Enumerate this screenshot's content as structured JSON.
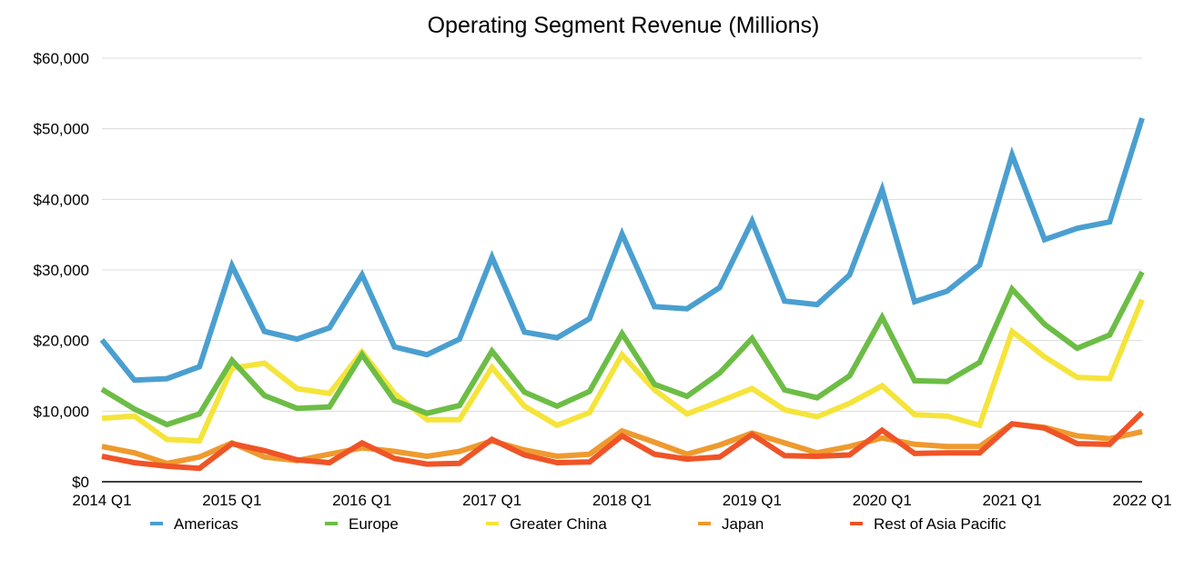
{
  "chart_data": {
    "type": "line",
    "title": "Operating Segment Revenue (Millions)",
    "xlabel": "",
    "ylabel": "",
    "ylim": [
      0,
      60000
    ],
    "yticks": [
      0,
      10000,
      20000,
      30000,
      40000,
      50000,
      60000
    ],
    "ytick_labels": [
      "$0",
      "$10,000",
      "$20,000",
      "$30,000",
      "$40,000",
      "$50,000",
      "$60,000"
    ],
    "x": [
      "2014 Q1",
      "2014 Q2",
      "2014 Q3",
      "2014 Q4",
      "2015 Q1",
      "2015 Q2",
      "2015 Q3",
      "2015 Q4",
      "2016 Q1",
      "2016 Q2",
      "2016 Q3",
      "2016 Q4",
      "2017 Q1",
      "2017 Q2",
      "2017 Q3",
      "2017 Q4",
      "2018 Q1",
      "2018 Q2",
      "2018 Q3",
      "2018 Q4",
      "2019 Q1",
      "2019 Q2",
      "2019 Q3",
      "2019 Q4",
      "2020 Q1",
      "2020 Q2",
      "2020 Q3",
      "2020 Q4",
      "2021 Q1",
      "2021 Q2",
      "2021 Q3",
      "2021 Q4",
      "2022 Q1"
    ],
    "xtick_labels": [
      "2014 Q1",
      "2015 Q1",
      "2016 Q1",
      "2017 Q1",
      "2018 Q1",
      "2019 Q1",
      "2020 Q1",
      "2021 Q1",
      "2022 Q1"
    ],
    "grid": true,
    "legend_position": "bottom",
    "series": [
      {
        "name": "Americas",
        "color": "#4a9fd0",
        "values": [
          20100,
          14400,
          14600,
          16300,
          30600,
          21300,
          20200,
          21800,
          29300,
          19100,
          18000,
          20200,
          31800,
          21200,
          20400,
          23100,
          35100,
          24800,
          24500,
          27500,
          36900,
          25600,
          25100,
          29300,
          41400,
          25500,
          27000,
          30700,
          46300,
          34300,
          35900,
          36800,
          51500
        ]
      },
      {
        "name": "Europe",
        "color": "#6cbd45",
        "values": [
          13100,
          10300,
          8100,
          9600,
          17200,
          12200,
          10400,
          10600,
          18000,
          11500,
          9700,
          10800,
          18500,
          12700,
          10700,
          12800,
          21000,
          13800,
          12100,
          15400,
          20300,
          13000,
          11900,
          15000,
          23300,
          14300,
          14200,
          16900,
          27300,
          22300,
          18900,
          20800,
          29700
        ]
      },
      {
        "name": "Greater China",
        "color": "#f5e43b",
        "values": [
          9000,
          9300,
          6000,
          5800,
          16100,
          16800,
          13200,
          12500,
          18400,
          12500,
          8800,
          8800,
          16200,
          10700,
          8000,
          9800,
          18000,
          13000,
          9600,
          11400,
          13200,
          10200,
          9200,
          11100,
          13600,
          9500,
          9300,
          8000,
          21300,
          17700,
          14800,
          14600,
          25800
        ]
      },
      {
        "name": "Japan",
        "color": "#ee9a2f",
        "values": [
          5000,
          4100,
          2600,
          3500,
          5500,
          3500,
          3000,
          3900,
          4800,
          4300,
          3600,
          4300,
          5800,
          4500,
          3600,
          3900,
          7200,
          5600,
          3900,
          5200,
          6900,
          5500,
          4100,
          5000,
          6200,
          5300,
          5000,
          5000,
          8200,
          7700,
          6500,
          6100,
          7100
        ]
      },
      {
        "name": "Rest of Asia Pacific",
        "color": "#ef5427",
        "values": [
          3600,
          2700,
          2200,
          1900,
          5400,
          4400,
          3100,
          2700,
          5500,
          3300,
          2500,
          2600,
          6000,
          3800,
          2700,
          2800,
          6500,
          3900,
          3200,
          3500,
          6700,
          3700,
          3600,
          3800,
          7300,
          4000,
          4100,
          4100,
          8200,
          7600,
          5400,
          5300,
          9800
        ]
      }
    ]
  }
}
